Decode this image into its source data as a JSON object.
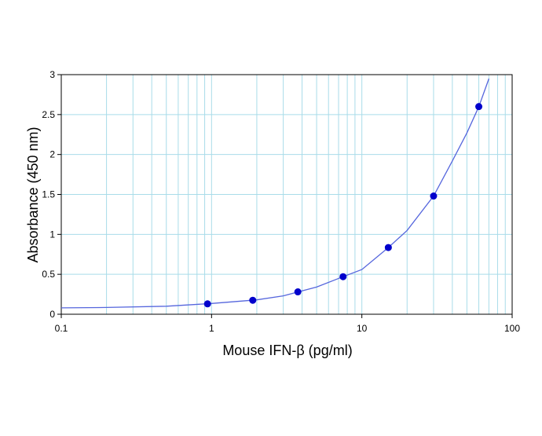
{
  "chart_data": {
    "type": "scatter",
    "x_label": "Mouse IFN-β (pg/ml)",
    "y_label": "Absorbance (450 nm)",
    "x_log": true,
    "grid": true,
    "xlim": [
      0.1,
      100
    ],
    "ylim": [
      0,
      3
    ],
    "xticks": [
      0.1,
      1,
      10,
      100
    ],
    "xminorticks": [
      0.2,
      0.3,
      0.4,
      0.5,
      0.6,
      0.7,
      0.8,
      0.9,
      2,
      3,
      4,
      5,
      6,
      7,
      8,
      9,
      20,
      30,
      40,
      50,
      60,
      70,
      80,
      90
    ],
    "yticks": [
      0,
      {
        "value": 0.5,
        "label": "0.5"
      },
      1,
      {
        "value": 1.5,
        "label": "1.5"
      },
      2,
      {
        "value": 2.5,
        "label": "2.5"
      },
      3
    ],
    "series": [
      {
        "color": "#0000cc",
        "x": [
          0.94,
          1.88,
          3.75,
          7.5,
          15,
          30,
          60
        ],
        "values": [
          0.13,
          0.175,
          0.28,
          0.47,
          0.835,
          1.48,
          2.6
        ]
      },
      {
        "color": "#5566dd",
        "x": [
          0.1,
          0.2,
          0.5,
          1,
          2,
          3,
          5,
          7.5,
          10,
          15,
          20,
          30,
          40,
          50,
          60,
          70
        ],
        "values": [
          0.08,
          0.085,
          0.1,
          0.135,
          0.18,
          0.23,
          0.34,
          0.47,
          0.56,
          0.835,
          1.05,
          1.48,
          1.92,
          2.27,
          2.6,
          2.95
        ]
      }
    ]
  }
}
